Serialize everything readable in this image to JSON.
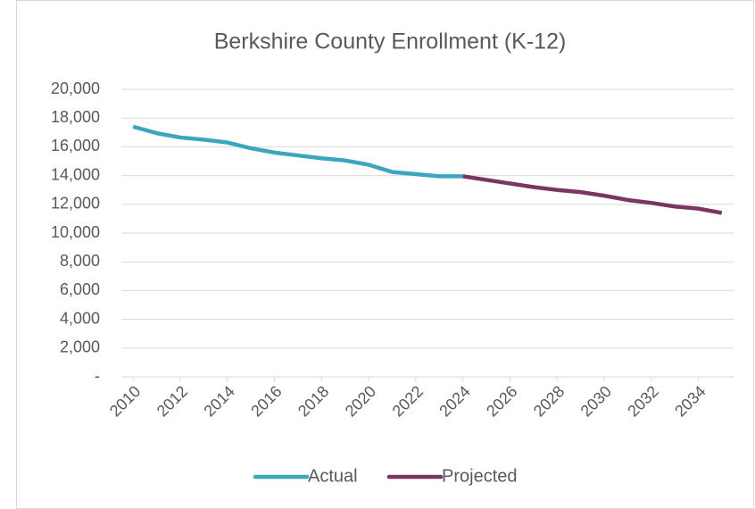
{
  "chart_data": {
    "type": "line",
    "title": "Berkshire County Enrollment (K-12)",
    "x": [
      2010,
      2011,
      2012,
      2013,
      2014,
      2015,
      2016,
      2017,
      2018,
      2019,
      2020,
      2021,
      2022,
      2023,
      2024,
      2025,
      2026,
      2027,
      2028,
      2029,
      2030,
      2031,
      2032,
      2033,
      2034,
      2035
    ],
    "series": [
      {
        "name": "Actual",
        "color": "#3ba6be",
        "values": [
          17400,
          16950,
          16650,
          16500,
          16300,
          15900,
          15600,
          15400,
          15200,
          15050,
          14750,
          14250,
          14100,
          13950,
          13950,
          null,
          null,
          null,
          null,
          null,
          null,
          null,
          null,
          null,
          null,
          null
        ]
      },
      {
        "name": "Projected",
        "color": "#7b3563",
        "values": [
          null,
          null,
          null,
          null,
          null,
          null,
          null,
          null,
          null,
          null,
          null,
          null,
          null,
          null,
          13950,
          13700,
          13450,
          13200,
          13000,
          12850,
          12600,
          12300,
          12100,
          11850,
          11700,
          11400
        ]
      }
    ],
    "xlim": [
      2009.5,
      2035.5
    ],
    "xticks": [
      2010,
      2012,
      2014,
      2016,
      2018,
      2020,
      2022,
      2024,
      2026,
      2028,
      2030,
      2032,
      2034
    ],
    "ylim": [
      0,
      20000
    ],
    "yticks": [
      {
        "value": 0,
        "label": "-"
      },
      {
        "value": 2000,
        "label": "2,000"
      },
      {
        "value": 4000,
        "label": "4,000"
      },
      {
        "value": 6000,
        "label": "6,000"
      },
      {
        "value": 8000,
        "label": "8,000"
      },
      {
        "value": 10000,
        "label": "10,000"
      },
      {
        "value": 12000,
        "label": "12,000"
      },
      {
        "value": 14000,
        "label": "14,000"
      },
      {
        "value": 16000,
        "label": "16,000"
      },
      {
        "value": 18000,
        "label": "18,000"
      },
      {
        "value": 20000,
        "label": "20,000"
      }
    ],
    "grid": true,
    "legend": "bottom"
  }
}
